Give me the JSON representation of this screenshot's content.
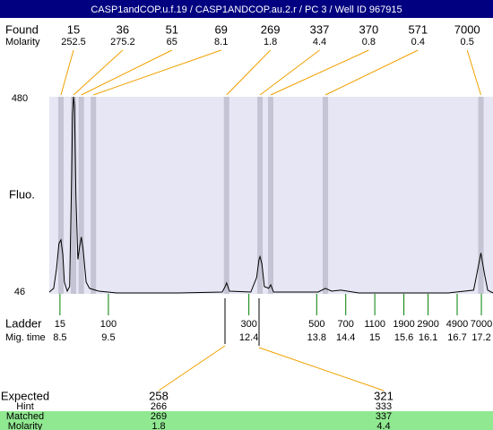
{
  "header": {
    "title": "CASP1andCOP.u.f.19 / CASP1ANDCOP.au.2.r / PC 3 / Well ID 967915"
  },
  "found": {
    "label": "Found",
    "molarity_label": "Molarity",
    "peaks": [
      {
        "size": 15,
        "molarity": 252.5,
        "time": 8.52
      },
      {
        "size": 36,
        "molarity": 275.2,
        "time": 8.78
      },
      {
        "size": 51,
        "molarity": 65,
        "time": 8.94
      },
      {
        "size": 69,
        "molarity": 8.1,
        "time": 9.19
      },
      {
        "size": 269,
        "molarity": 1.8,
        "time": 11.94
      },
      {
        "size": 337,
        "molarity": 4.4,
        "time": 12.63
      },
      {
        "size": 370,
        "molarity": 0.8,
        "time": 12.85
      },
      {
        "size": 571,
        "molarity": 0.4,
        "time": 13.98
      },
      {
        "size": 7000,
        "molarity": 0.5,
        "time": 17.19
      }
    ]
  },
  "plot": {
    "y_label": "Fluo.",
    "ylim": [
      46,
      480
    ],
    "xlim": [
      8.28,
      17.44
    ],
    "trace": {
      "x": [
        8.28,
        8.37,
        8.43,
        8.48,
        8.52,
        8.56,
        8.59,
        8.65,
        8.7,
        8.74,
        8.76,
        8.78,
        8.8,
        8.83,
        8.87,
        8.91,
        8.94,
        8.98,
        9.04,
        9.11,
        9.3,
        9.67,
        10.96,
        11.85,
        11.91,
        11.94,
        12.0,
        12.44,
        12.56,
        12.61,
        12.63,
        12.67,
        12.72,
        12.81,
        12.85,
        12.91,
        13.83,
        13.98,
        14.11,
        14.3,
        14.67,
        16.52,
        17.04,
        17.11,
        17.19,
        17.26,
        17.33,
        17.44
      ],
      "y": [
        50,
        58,
        102,
        157,
        165,
        132,
        72,
        52,
        62,
        301,
        440,
        480,
        460,
        261,
        122,
        152,
        171,
        142,
        72,
        58,
        52,
        48,
        48,
        50,
        62,
        70,
        52,
        50,
        82,
        122,
        128,
        112,
        62,
        58,
        66,
        50,
        50,
        58,
        52,
        54,
        48,
        48,
        54,
        92,
        136,
        92,
        54,
        48
      ]
    }
  },
  "ladder": {
    "label": "Ladder",
    "time_label": "Mig. time",
    "markers": [
      {
        "size": 15,
        "time": 8.5
      },
      {
        "size": 100,
        "time": 9.5
      },
      {
        "size": 300,
        "time": 12.4
      },
      {
        "size": 500,
        "time": 13.8
      },
      {
        "size": 700,
        "time": 14.4
      },
      {
        "size": 1100,
        "time": 15
      },
      {
        "size": 1900,
        "time": 15.6
      },
      {
        "size": 2900,
        "time": 16.1
      },
      {
        "size": 4900,
        "time": 16.7
      },
      {
        "size": 7000,
        "time": 17.2
      }
    ]
  },
  "expected": {
    "label": "Expected",
    "hint_label": "Hint",
    "matched_label": "Matched",
    "molarity_label": "Molarity",
    "rows": [
      {
        "expected": 258,
        "hint": 266,
        "matched": 269,
        "molarity": 1.8
      },
      {
        "expected": 321,
        "hint": 333,
        "matched": 337,
        "molarity": 4.4
      }
    ]
  }
}
